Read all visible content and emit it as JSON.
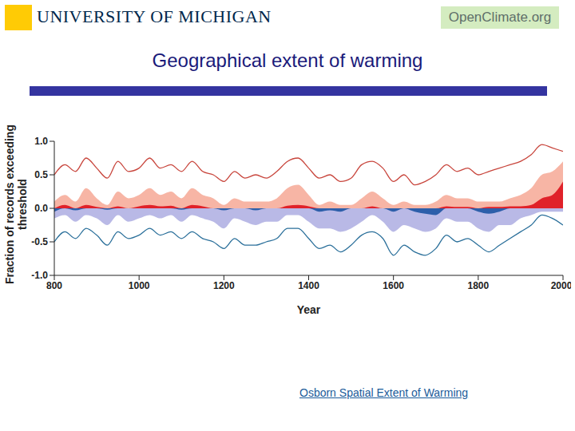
{
  "header": {
    "university": "UNIVERSITY OF MICHIGAN",
    "badge": "OpenClimate.org"
  },
  "link": "Osborn Spatial Extent of Warming",
  "chart_data": {
    "type": "area",
    "title": "Geographical extent of warming",
    "x_label": "Year",
    "y_label": "Fraction of records exceeding threshold",
    "x": [
      800,
      825,
      850,
      875,
      900,
      925,
      950,
      975,
      1000,
      1025,
      1050,
      1075,
      1100,
      1125,
      1150,
      1175,
      1200,
      1225,
      1250,
      1275,
      1300,
      1325,
      1350,
      1375,
      1400,
      1425,
      1450,
      1475,
      1500,
      1525,
      1550,
      1575,
      1600,
      1625,
      1650,
      1675,
      1700,
      1725,
      1750,
      1775,
      1800,
      1825,
      1850,
      1875,
      1900,
      1925,
      1950,
      1975,
      2000
    ],
    "series": [
      {
        "type": "area",
        "color": "#f7b5a5",
        "values": [
          0.1,
          0.2,
          0.1,
          0.3,
          0.15,
          0.05,
          0.25,
          0.15,
          0.2,
          0.3,
          0.2,
          0.25,
          0.15,
          0.3,
          0.2,
          0.15,
          0.05,
          0.15,
          0.1,
          0.1,
          0.1,
          0.15,
          0.3,
          0.35,
          0.2,
          0.05,
          0.1,
          0.05,
          0.05,
          0.15,
          0.25,
          0.15,
          0.05,
          0.1,
          0.05,
          0.05,
          0.1,
          0.2,
          0.15,
          0.15,
          0.1,
          0.1,
          0.1,
          0.15,
          0.2,
          0.3,
          0.5,
          0.55,
          0.7
        ]
      },
      {
        "type": "area",
        "color": "#b9b9e6",
        "values": [
          -0.15,
          -0.1,
          -0.2,
          -0.1,
          -0.15,
          -0.25,
          -0.1,
          -0.2,
          -0.15,
          -0.1,
          -0.15,
          -0.1,
          -0.2,
          -0.1,
          -0.15,
          -0.2,
          -0.3,
          -0.15,
          -0.2,
          -0.25,
          -0.2,
          -0.2,
          -0.1,
          -0.1,
          -0.2,
          -0.3,
          -0.3,
          -0.35,
          -0.3,
          -0.2,
          -0.1,
          -0.2,
          -0.35,
          -0.25,
          -0.3,
          -0.35,
          -0.3,
          -0.15,
          -0.2,
          -0.2,
          -0.3,
          -0.35,
          -0.25,
          -0.25,
          -0.15,
          -0.1,
          -0.05,
          -0.05,
          -0.05
        ]
      },
      {
        "type": "area",
        "color": "#e0222a",
        "values": [
          0,
          0.05,
          0,
          0.05,
          0.02,
          0,
          0.03,
          0,
          0.03,
          0.05,
          0.03,
          0.04,
          0,
          0.05,
          0.03,
          0,
          0,
          0,
          0,
          0,
          0,
          0,
          0.04,
          0.05,
          0.03,
          0,
          0,
          0,
          0,
          0,
          0.03,
          0,
          0,
          0,
          0,
          0,
          0,
          0.03,
          0.02,
          0.02,
          0,
          0.02,
          0.02,
          0.03,
          0.03,
          0.05,
          0.15,
          0.2,
          0.4
        ]
      },
      {
        "type": "area",
        "color": "#2d5faa",
        "values": [
          -0.05,
          0,
          -0.03,
          0,
          0,
          -0.02,
          0,
          0,
          0,
          0,
          0,
          0,
          -0.02,
          0,
          0,
          0,
          -0.03,
          0,
          0,
          -0.03,
          0,
          0,
          0,
          0,
          0,
          -0.05,
          -0.03,
          -0.05,
          0,
          0,
          0,
          0,
          -0.05,
          0,
          -0.05,
          -0.08,
          -0.1,
          0,
          0,
          0,
          -0.05,
          -0.08,
          -0.05,
          0,
          0,
          0,
          0,
          0,
          0
        ]
      },
      {
        "type": "line",
        "color": "#c8453c",
        "values": [
          0.5,
          0.65,
          0.55,
          0.75,
          0.6,
          0.45,
          0.7,
          0.55,
          0.6,
          0.75,
          0.6,
          0.65,
          0.55,
          0.7,
          0.55,
          0.5,
          0.4,
          0.55,
          0.45,
          0.5,
          0.45,
          0.55,
          0.7,
          0.75,
          0.6,
          0.45,
          0.5,
          0.4,
          0.45,
          0.65,
          0.7,
          0.6,
          0.4,
          0.5,
          0.35,
          0.4,
          0.5,
          0.65,
          0.55,
          0.6,
          0.5,
          0.55,
          0.6,
          0.65,
          0.7,
          0.8,
          0.95,
          0.9,
          0.85
        ]
      },
      {
        "type": "line",
        "color": "#2a6f9a",
        "values": [
          -0.5,
          -0.35,
          -0.45,
          -0.3,
          -0.4,
          -0.55,
          -0.35,
          -0.45,
          -0.4,
          -0.3,
          -0.4,
          -0.35,
          -0.45,
          -0.35,
          -0.45,
          -0.5,
          -0.6,
          -0.45,
          -0.55,
          -0.55,
          -0.5,
          -0.45,
          -0.3,
          -0.3,
          -0.45,
          -0.6,
          -0.55,
          -0.65,
          -0.55,
          -0.4,
          -0.35,
          -0.45,
          -0.7,
          -0.55,
          -0.65,
          -0.7,
          -0.6,
          -0.4,
          -0.5,
          -0.45,
          -0.55,
          -0.65,
          -0.55,
          -0.45,
          -0.35,
          -0.25,
          -0.1,
          -0.15,
          -0.25
        ]
      }
    ],
    "xlim": [
      800,
      2000
    ],
    "xticks": [
      800,
      1000,
      1200,
      1400,
      1600,
      1800,
      2000
    ],
    "ylim": [
      -1,
      1
    ],
    "yticks": [
      {
        "value": -1,
        "label": "-1.0"
      },
      -0.5,
      {
        "value": 0,
        "label": "0.0"
      },
      0.5,
      {
        "value": 1,
        "label": "1.0"
      }
    ]
  }
}
